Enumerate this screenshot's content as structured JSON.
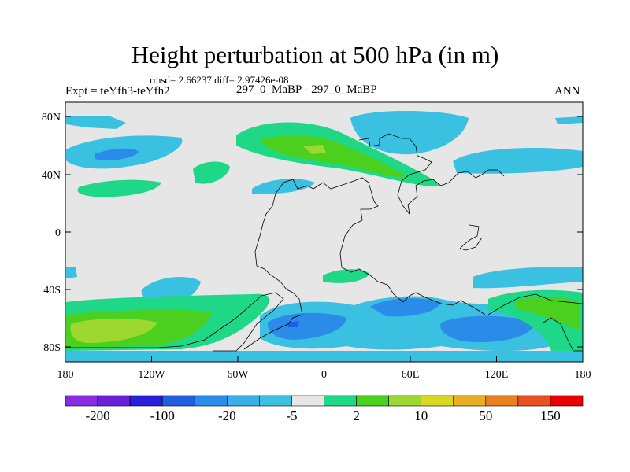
{
  "title": "Height perturbation at 500 hPa (in m)",
  "stats": "rmsd= 2.66237 diff= 2.97426e-08",
  "experiment": "Expt = teYfh3-teYfh2",
  "case": "297_0_MaBP - 297_0_MaBP",
  "season": "ANN",
  "lat_labels": [
    "80N",
    "40N",
    "0",
    "40S",
    "80S"
  ],
  "lon_labels": [
    "180",
    "120W",
    "60W",
    "0",
    "60E",
    "120E",
    "180"
  ],
  "colorbar": {
    "colors": [
      "#8a2be2",
      "#6a1fd8",
      "#2a1fd8",
      "#1f5fe0",
      "#2a8ce8",
      "#3ab0e8",
      "#3ac0e0",
      "#e6e6e6",
      "#1ed888",
      "#4cd020",
      "#9cd830",
      "#d8d820",
      "#e8b020",
      "#e88020",
      "#e85020",
      "#e80000"
    ],
    "labels": [
      "-200",
      "-100",
      "-20",
      "-5",
      "2",
      "10",
      "50",
      "150"
    ]
  }
}
